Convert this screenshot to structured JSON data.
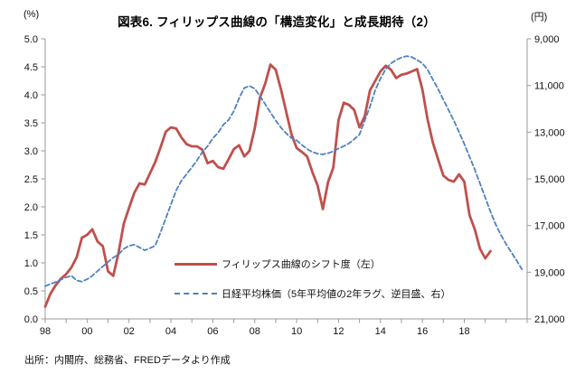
{
  "source_note": "出所：内閣府、総務省、FREDデータより作成",
  "chart_data": {
    "type": "line",
    "title": "図表6. フィリップス曲線の「構造変化」と成長期待（2）",
    "grid": false,
    "legend_position": "inside-left-middle",
    "x_axis": {
      "min": 1998,
      "max": 2021,
      "tick_values": [
        1998,
        2000,
        2002,
        2004,
        2006,
        2008,
        2010,
        2012,
        2014,
        2016,
        2018
      ],
      "tick_labels": [
        "98",
        "00",
        "02",
        "04",
        "06",
        "08",
        "10",
        "12",
        "14",
        "16",
        "18"
      ],
      "minor_tick_every_year": true
    },
    "left_axis": {
      "unit": "(%)",
      "min": 0,
      "max": 5,
      "tick_values": [
        0,
        0.5,
        1,
        1.5,
        2,
        2.5,
        3,
        3.5,
        4,
        4.5,
        5
      ],
      "tick_labels": [
        "0.0",
        "0.5",
        "1.0",
        "1.5",
        "2.0",
        "2.5",
        "3.0",
        "3.5",
        "4.0",
        "4.5",
        "5.0"
      ]
    },
    "right_axis": {
      "unit": "(円)",
      "min": 9000,
      "max": 21000,
      "reversed": true,
      "tick_values": [
        9000,
        11000,
        13000,
        15000,
        17000,
        19000,
        21000
      ],
      "tick_labels": [
        "9,000",
        "11,000",
        "13,000",
        "15,000",
        "17,000",
        "19,000",
        "21,000"
      ]
    },
    "series": [
      {
        "name": "フィリップス曲線のシフト度（左）",
        "axis": "left",
        "style": "solid",
        "color": "#C0504D",
        "data": [
          [
            1998.0,
            0.22
          ],
          [
            1998.25,
            0.45
          ],
          [
            1998.5,
            0.6
          ],
          [
            1998.75,
            0.72
          ],
          [
            1999.0,
            0.8
          ],
          [
            1999.25,
            0.92
          ],
          [
            1999.5,
            1.1
          ],
          [
            1999.75,
            1.45
          ],
          [
            2000.0,
            1.5
          ],
          [
            2000.25,
            1.6
          ],
          [
            2000.5,
            1.38
          ],
          [
            2000.75,
            1.3
          ],
          [
            2001.0,
            0.85
          ],
          [
            2001.25,
            0.77
          ],
          [
            2001.5,
            1.18
          ],
          [
            2001.75,
            1.7
          ],
          [
            2002.0,
            1.98
          ],
          [
            2002.25,
            2.25
          ],
          [
            2002.5,
            2.42
          ],
          [
            2002.75,
            2.4
          ],
          [
            2003.0,
            2.6
          ],
          [
            2003.25,
            2.8
          ],
          [
            2003.5,
            3.06
          ],
          [
            2003.75,
            3.34
          ],
          [
            2004.0,
            3.42
          ],
          [
            2004.25,
            3.4
          ],
          [
            2004.5,
            3.24
          ],
          [
            2004.75,
            3.12
          ],
          [
            2005.0,
            3.08
          ],
          [
            2005.25,
            3.08
          ],
          [
            2005.5,
            3.02
          ],
          [
            2005.75,
            2.78
          ],
          [
            2006.0,
            2.82
          ],
          [
            2006.25,
            2.71
          ],
          [
            2006.5,
            2.68
          ],
          [
            2006.75,
            2.85
          ],
          [
            2007.0,
            3.03
          ],
          [
            2007.25,
            3.1
          ],
          [
            2007.5,
            2.9
          ],
          [
            2007.75,
            3.0
          ],
          [
            2008.0,
            3.4
          ],
          [
            2008.25,
            3.95
          ],
          [
            2008.5,
            4.2
          ],
          [
            2008.75,
            4.54
          ],
          [
            2009.0,
            4.45
          ],
          [
            2009.25,
            4.1
          ],
          [
            2009.5,
            3.7
          ],
          [
            2009.75,
            3.3
          ],
          [
            2010.0,
            3.05
          ],
          [
            2010.25,
            2.98
          ],
          [
            2010.5,
            2.9
          ],
          [
            2010.75,
            2.62
          ],
          [
            2011.0,
            2.38
          ],
          [
            2011.25,
            1.96
          ],
          [
            2011.5,
            2.44
          ],
          [
            2011.75,
            2.7
          ],
          [
            2012.0,
            3.55
          ],
          [
            2012.25,
            3.86
          ],
          [
            2012.5,
            3.82
          ],
          [
            2012.75,
            3.73
          ],
          [
            2013.0,
            3.42
          ],
          [
            2013.25,
            3.62
          ],
          [
            2013.5,
            4.08
          ],
          [
            2013.75,
            4.25
          ],
          [
            2014.0,
            4.42
          ],
          [
            2014.25,
            4.52
          ],
          [
            2014.5,
            4.45
          ],
          [
            2014.75,
            4.3
          ],
          [
            2015.0,
            4.36
          ],
          [
            2015.25,
            4.38
          ],
          [
            2015.5,
            4.42
          ],
          [
            2015.75,
            4.46
          ],
          [
            2016.0,
            4.1
          ],
          [
            2016.25,
            3.56
          ],
          [
            2016.5,
            3.15
          ],
          [
            2016.75,
            2.85
          ],
          [
            2017.0,
            2.56
          ],
          [
            2017.25,
            2.48
          ],
          [
            2017.5,
            2.45
          ],
          [
            2017.75,
            2.58
          ],
          [
            2018.0,
            2.45
          ],
          [
            2018.25,
            1.85
          ],
          [
            2018.5,
            1.6
          ],
          [
            2018.75,
            1.25
          ],
          [
            2019.0,
            1.08
          ],
          [
            2019.25,
            1.21
          ]
        ]
      },
      {
        "name": "日経平均株価（5年平均値の2年ラグ、逆目盛、右）",
        "axis": "right",
        "style": "dashed",
        "color": "#4F81BD",
        "data": [
          [
            1998.0,
            19600
          ],
          [
            1998.25,
            19500
          ],
          [
            1998.5,
            19420
          ],
          [
            1998.75,
            19320
          ],
          [
            1999.0,
            19220
          ],
          [
            1999.25,
            19150
          ],
          [
            1999.5,
            19350
          ],
          [
            1999.75,
            19400
          ],
          [
            2000.0,
            19300
          ],
          [
            2000.25,
            19150
          ],
          [
            2000.5,
            18950
          ],
          [
            2000.75,
            18750
          ],
          [
            2001.0,
            18560
          ],
          [
            2001.25,
            18370
          ],
          [
            2001.5,
            18240
          ],
          [
            2001.75,
            18000
          ],
          [
            2002.0,
            17870
          ],
          [
            2002.25,
            17820
          ],
          [
            2002.5,
            17940
          ],
          [
            2002.75,
            18060
          ],
          [
            2003.0,
            17970
          ],
          [
            2003.25,
            17860
          ],
          [
            2003.5,
            17300
          ],
          [
            2003.75,
            16700
          ],
          [
            2004.0,
            16100
          ],
          [
            2004.25,
            15500
          ],
          [
            2004.5,
            15080
          ],
          [
            2004.75,
            14800
          ],
          [
            2005.0,
            14500
          ],
          [
            2005.25,
            14200
          ],
          [
            2005.5,
            13850
          ],
          [
            2005.75,
            13600
          ],
          [
            2006.0,
            13260
          ],
          [
            2006.25,
            13020
          ],
          [
            2006.5,
            12680
          ],
          [
            2006.75,
            12480
          ],
          [
            2007.0,
            12100
          ],
          [
            2007.25,
            11550
          ],
          [
            2007.5,
            11100
          ],
          [
            2007.75,
            11020
          ],
          [
            2008.0,
            11130
          ],
          [
            2008.25,
            11450
          ],
          [
            2008.5,
            11800
          ],
          [
            2008.75,
            12150
          ],
          [
            2009.0,
            12500
          ],
          [
            2009.25,
            12800
          ],
          [
            2009.5,
            13050
          ],
          [
            2009.75,
            13250
          ],
          [
            2010.0,
            13350
          ],
          [
            2010.25,
            13550
          ],
          [
            2010.5,
            13720
          ],
          [
            2010.75,
            13850
          ],
          [
            2011.0,
            13920
          ],
          [
            2011.25,
            13950
          ],
          [
            2011.5,
            13900
          ],
          [
            2011.75,
            13820
          ],
          [
            2012.0,
            13700
          ],
          [
            2012.25,
            13600
          ],
          [
            2012.5,
            13480
          ],
          [
            2012.75,
            13300
          ],
          [
            2013.0,
            13100
          ],
          [
            2013.25,
            12500
          ],
          [
            2013.5,
            11900
          ],
          [
            2013.75,
            11200
          ],
          [
            2014.0,
            10700
          ],
          [
            2014.25,
            10300
          ],
          [
            2014.5,
            10050
          ],
          [
            2014.75,
            9900
          ],
          [
            2015.0,
            9800
          ],
          [
            2015.25,
            9740
          ],
          [
            2015.5,
            9780
          ],
          [
            2015.75,
            9900
          ],
          [
            2016.0,
            10050
          ],
          [
            2016.25,
            10320
          ],
          [
            2016.5,
            10740
          ],
          [
            2016.75,
            11150
          ],
          [
            2017.0,
            11600
          ],
          [
            2017.25,
            12050
          ],
          [
            2017.5,
            12500
          ],
          [
            2017.75,
            13000
          ],
          [
            2018.0,
            13500
          ],
          [
            2018.25,
            14050
          ],
          [
            2018.5,
            14600
          ],
          [
            2018.75,
            15200
          ],
          [
            2019.0,
            15800
          ],
          [
            2019.25,
            16400
          ],
          [
            2019.5,
            16950
          ],
          [
            2019.75,
            17400
          ],
          [
            2020.0,
            17800
          ],
          [
            2020.25,
            18150
          ],
          [
            2020.5,
            18500
          ],
          [
            2020.75,
            18870
          ]
        ]
      }
    ]
  }
}
